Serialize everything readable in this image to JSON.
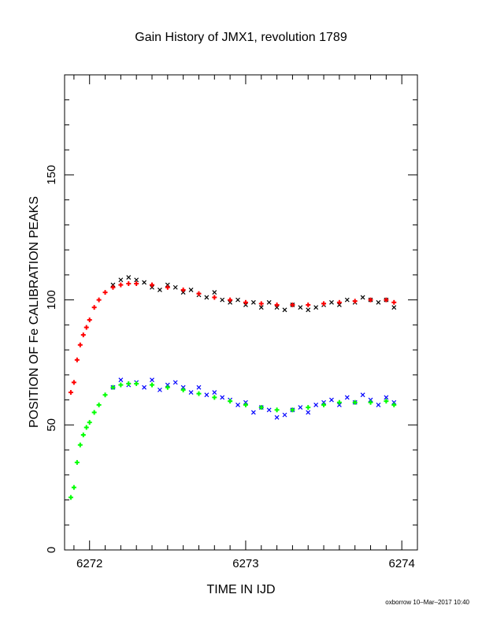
{
  "chart_data": {
    "type": "scatter",
    "title": "Gain History of JMX1, revolution 1789",
    "xlabel": "TIME IN IJD",
    "ylabel": "POSITION OF Fe CALIBRATION PEAKS",
    "xlim": [
      6271.84,
      6274.1
    ],
    "ylim": [
      0,
      190
    ],
    "xticks": [
      6272,
      6273,
      6274
    ],
    "yticks": [
      0,
      50,
      100,
      150
    ],
    "grid": false,
    "colors": {
      "upper_raw": "#000000",
      "upper_fit": "#ff0000",
      "lower_raw": "#0000ff",
      "lower_fit": "#00ff00"
    },
    "series": [
      {
        "key": "upper_raw",
        "marker": "x",
        "x": [
          6272.15,
          6272.2,
          6272.25,
          6272.3,
          6272.35,
          6272.4,
          6272.45,
          6272.5,
          6272.55,
          6272.6,
          6272.65,
          6272.7,
          6272.75,
          6272.8,
          6272.85,
          6272.9,
          6272.95,
          6273.0,
          6273.05,
          6273.1,
          6273.15,
          6273.2,
          6273.25,
          6273.3,
          6273.35,
          6273.4,
          6273.45,
          6273.5,
          6273.55,
          6273.6,
          6273.65,
          6273.7,
          6273.75,
          6273.8,
          6273.85,
          6273.9,
          6273.95
        ],
        "y": [
          106,
          108,
          109,
          108,
          107,
          105,
          104,
          106,
          105,
          103,
          104,
          102,
          101,
          103,
          100,
          99,
          100,
          98,
          99,
          97,
          99,
          97,
          96,
          98,
          97,
          96,
          97,
          98,
          99,
          98,
          100,
          99,
          101,
          100,
          99,
          100,
          97
        ]
      },
      {
        "key": "upper_fit",
        "marker": "+",
        "x": [
          6271.88,
          6271.9,
          6271.92,
          6271.94,
          6271.96,
          6271.98,
          6272.0,
          6272.03,
          6272.06,
          6272.1,
          6272.15,
          6272.2,
          6272.25,
          6272.3,
          6272.4,
          6272.5,
          6272.6,
          6272.7,
          6272.8,
          6272.9,
          6273.0,
          6273.1,
          6273.2,
          6273.3,
          6273.4,
          6273.5,
          6273.6,
          6273.7,
          6273.8,
          6273.9,
          6273.95
        ],
        "y": [
          63,
          67,
          76,
          82,
          86,
          89,
          92,
          97,
          100,
          103,
          105,
          106,
          106.5,
          106.5,
          106,
          105,
          104,
          102.5,
          101,
          100,
          99,
          98.5,
          98,
          98,
          98,
          98.5,
          99,
          99.5,
          100,
          100,
          99
        ]
      },
      {
        "key": "lower_raw",
        "marker": "x",
        "x": [
          6272.15,
          6272.2,
          6272.25,
          6272.3,
          6272.35,
          6272.4,
          6272.45,
          6272.5,
          6272.55,
          6272.6,
          6272.65,
          6272.7,
          6272.75,
          6272.8,
          6272.85,
          6272.9,
          6272.95,
          6273.0,
          6273.05,
          6273.1,
          6273.15,
          6273.2,
          6273.25,
          6273.3,
          6273.35,
          6273.4,
          6273.45,
          6273.5,
          6273.55,
          6273.6,
          6273.65,
          6273.7,
          6273.75,
          6273.8,
          6273.85,
          6273.9,
          6273.95
        ],
        "y": [
          65,
          68,
          66,
          67,
          65,
          68,
          64,
          66,
          67,
          65,
          63,
          65,
          62,
          63,
          61,
          60,
          58,
          59,
          55,
          57,
          56,
          53,
          54,
          56,
          57,
          55,
          58,
          59,
          60,
          58,
          61,
          59,
          62,
          60,
          58,
          61,
          59
        ]
      },
      {
        "key": "lower_fit",
        "marker": "+",
        "x": [
          6271.88,
          6271.9,
          6271.92,
          6271.94,
          6271.96,
          6271.98,
          6272.0,
          6272.03,
          6272.06,
          6272.1,
          6272.15,
          6272.2,
          6272.25,
          6272.3,
          6272.4,
          6272.5,
          6272.6,
          6272.7,
          6272.8,
          6272.9,
          6273.0,
          6273.1,
          6273.2,
          6273.3,
          6273.4,
          6273.5,
          6273.6,
          6273.7,
          6273.8,
          6273.9,
          6273.95
        ],
        "y": [
          21,
          25,
          35,
          42,
          46,
          49,
          51,
          55,
          58,
          62,
          65,
          66,
          66.5,
          66.5,
          66,
          65,
          64,
          62.5,
          61,
          59.5,
          58,
          57,
          56,
          56,
          57,
          58,
          59,
          59,
          59,
          59.5,
          58
        ]
      }
    ]
  },
  "footer": {
    "stamp": "oxborrow 10–Mar–2017 10:40"
  }
}
